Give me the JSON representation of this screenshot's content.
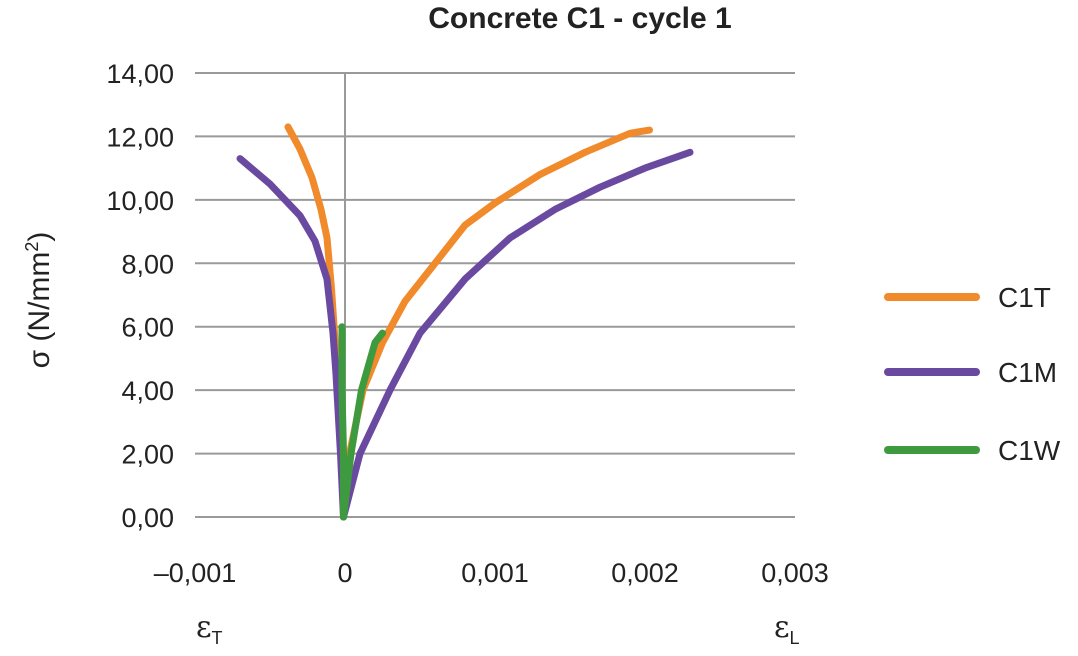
{
  "chart_data": {
    "type": "line",
    "title": "Concrete C1 - cycle 1",
    "ylabel": "σ (N/mm²)",
    "ylabel_main": "σ (N/mm",
    "ylabel_sup": "2",
    "ylabel_close": ")",
    "xlabel_left": {
      "symbol": "ε",
      "sub": "T"
    },
    "xlabel_right": {
      "symbol": "ε",
      "sub": "L"
    },
    "xlim": [
      -0.001,
      0.003
    ],
    "ylim": [
      0,
      14
    ],
    "x_ticks": [
      -0.001,
      0,
      0.001,
      0.002,
      0.003
    ],
    "x_tick_labels": [
      "–0,001",
      "0",
      "0,001",
      "0,002",
      "0,003"
    ],
    "y_ticks": [
      0,
      2,
      4,
      6,
      8,
      10,
      12,
      14
    ],
    "y_tick_labels": [
      "0,00",
      "2,00",
      "4,00",
      "6,00",
      "8,00",
      "10,00",
      "12,00",
      "14,00"
    ],
    "grid": "horizontal",
    "legend_position": "right",
    "series": [
      {
        "name": "C1T",
        "color": "#F08A2A",
        "branches": [
          [
            [
              -1e-05,
              0
            ],
            [
              -2e-05,
              1.5
            ],
            [
              -4e-05,
              3.5
            ],
            [
              -7e-05,
              5.8
            ],
            [
              -9e-05,
              7.2
            ],
            [
              -0.00012,
              8.8
            ],
            [
              -0.00016,
              9.7
            ],
            [
              -0.00022,
              10.7
            ],
            [
              -0.0003,
              11.6
            ],
            [
              -0.00038,
              12.3
            ]
          ],
          [
            [
              -1e-05,
              0
            ],
            [
              3e-05,
              2.0
            ],
            [
              0.00012,
              4.0
            ],
            [
              0.00025,
              5.5
            ],
            [
              0.0004,
              6.8
            ],
            [
              0.0006,
              8.0
            ],
            [
              0.0008,
              9.2
            ],
            [
              0.001,
              9.9
            ],
            [
              0.0013,
              10.8
            ],
            [
              0.0016,
              11.5
            ],
            [
              0.0019,
              12.1
            ],
            [
              0.00203,
              12.2
            ]
          ]
        ]
      },
      {
        "name": "C1M",
        "color": "#6A4AA0",
        "branches": [
          [
            [
              -1e-05,
              0
            ],
            [
              -3e-05,
              2.0
            ],
            [
              -6e-05,
              4.5
            ],
            [
              -8e-05,
              5.8
            ],
            [
              -0.00012,
              7.5
            ],
            [
              -0.0002,
              8.7
            ],
            [
              -0.0003,
              9.5
            ],
            [
              -0.0005,
              10.5
            ],
            [
              -0.0007,
              11.3
            ]
          ],
          [
            [
              -1e-05,
              0
            ],
            [
              0.0001,
              2.0
            ],
            [
              0.0003,
              4.0
            ],
            [
              0.0005,
              5.8
            ],
            [
              0.0008,
              7.5
            ],
            [
              0.0011,
              8.8
            ],
            [
              0.0014,
              9.7
            ],
            [
              0.0017,
              10.4
            ],
            [
              0.002,
              11.0
            ],
            [
              0.0023,
              11.5
            ]
          ]
        ]
      },
      {
        "name": "C1W",
        "color": "#3E9A3E",
        "branches": [
          [
            [
              -1e-05,
              0
            ],
            [
              -1e-05,
              2.0
            ],
            [
              -2e-05,
              4.0
            ],
            [
              -2e-05,
              6.0
            ]
          ],
          [
            [
              -1e-05,
              0
            ],
            [
              4e-05,
              2.0
            ],
            [
              0.00011,
              4.0
            ],
            [
              0.0002,
              5.5
            ],
            [
              0.00025,
              5.8
            ]
          ]
        ]
      }
    ]
  }
}
